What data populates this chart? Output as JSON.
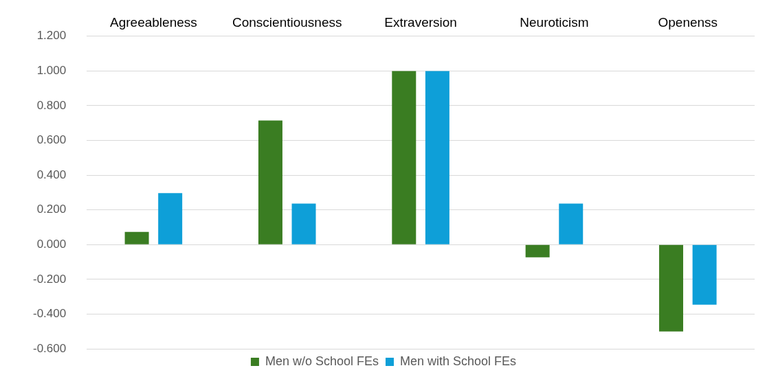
{
  "chart_data": {
    "type": "bar",
    "categories": [
      "Agreeableness",
      "Conscientiousness",
      "Extraversion",
      "Neuroticism",
      "Openenss"
    ],
    "series": [
      {
        "name": "Men w/o School FEs",
        "color": "#3a7d22",
        "values": [
          0.073,
          0.715,
          1.0,
          -0.073,
          -0.5
        ]
      },
      {
        "name": "Men with School FEs",
        "color": "#0e9fd8",
        "values": [
          0.297,
          0.236,
          1.0,
          0.236,
          -0.346
        ]
      }
    ],
    "ylim": [
      -0.6,
      1.2
    ],
    "yticks": [
      {
        "value": -0.6,
        "label": "-0.600"
      },
      {
        "value": -0.4,
        "label": "-0.400"
      },
      {
        "value": -0.2,
        "label": "-0.200"
      },
      {
        "value": 0,
        "label": "0.000"
      },
      {
        "value": 0.2,
        "label": "0.200"
      },
      {
        "value": 0.4,
        "label": "0.400"
      },
      {
        "value": 0.6,
        "label": "0.600"
      },
      {
        "value": 0.8,
        "label": "0.800"
      },
      {
        "value": 1.0,
        "label": "1.000"
      },
      {
        "value": 1.2,
        "label": "1.200"
      }
    ],
    "grid": "y",
    "legend": "bottom"
  }
}
